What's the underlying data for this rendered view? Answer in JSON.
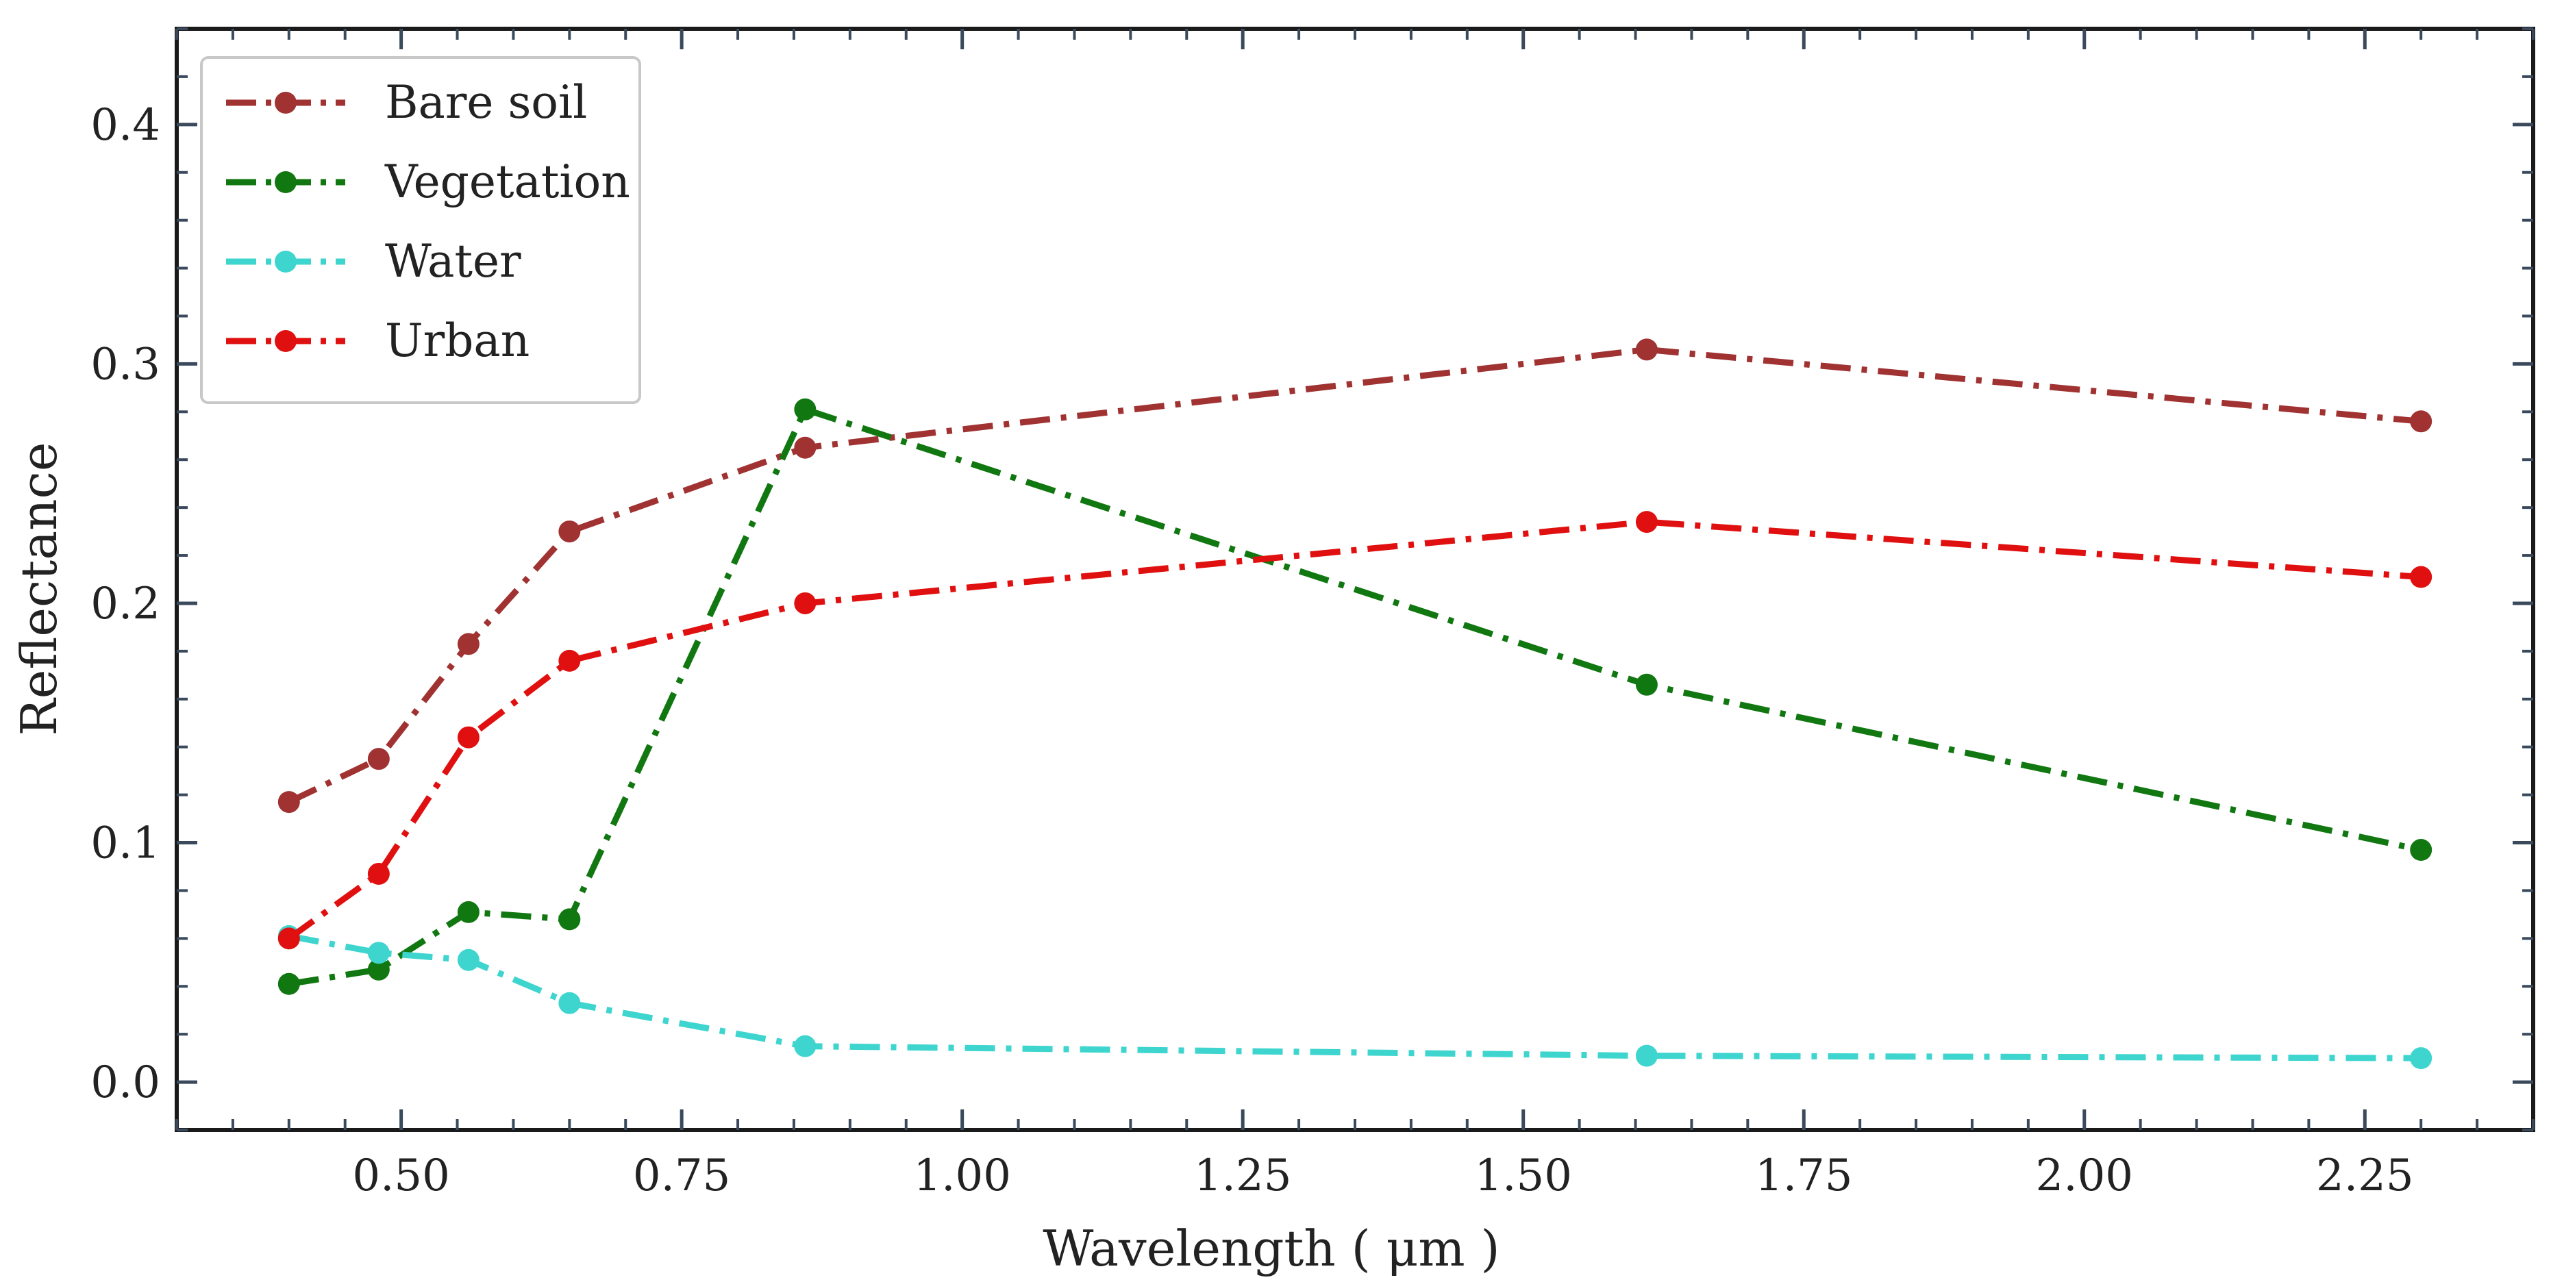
{
  "chart_data": {
    "type": "line",
    "title": "",
    "xlabel": "Wavelength ( μm )",
    "ylabel": "Reflectance",
    "xlim": [
      0.3,
      2.4
    ],
    "ylim": [
      -0.02,
      0.44
    ],
    "xticks": [
      0.5,
      0.75,
      1.0,
      1.25,
      1.5,
      1.75,
      2.0,
      2.25
    ],
    "xtick_labels": [
      "0.50",
      "0.75",
      "1.00",
      "1.25",
      "1.50",
      "1.75",
      "2.00",
      "2.25"
    ],
    "yticks": [
      0.0,
      0.1,
      0.2,
      0.3,
      0.4
    ],
    "ytick_labels": [
      "0.0",
      "0.1",
      "0.2",
      "0.3",
      "0.4"
    ],
    "legend_position": "top-left",
    "x": [
      0.4,
      0.48,
      0.56,
      0.65,
      0.86,
      1.61,
      2.3
    ],
    "series": [
      {
        "name": "Bare soil",
        "color": "#a03232",
        "values": [
          0.117,
          0.135,
          0.183,
          0.23,
          0.265,
          0.306,
          0.276
        ]
      },
      {
        "name": "Vegetation",
        "color": "#117711",
        "values": [
          0.041,
          0.047,
          0.071,
          0.068,
          0.281,
          0.166,
          0.097
        ]
      },
      {
        "name": "Water",
        "color": "#3fd5cf",
        "values": [
          0.061,
          0.054,
          0.051,
          0.033,
          0.015,
          0.011,
          0.01
        ]
      },
      {
        "name": "Urban",
        "color": "#e01010",
        "values": [
          0.06,
          0.087,
          0.144,
          0.176,
          0.2,
          0.234,
          0.211
        ]
      }
    ]
  }
}
